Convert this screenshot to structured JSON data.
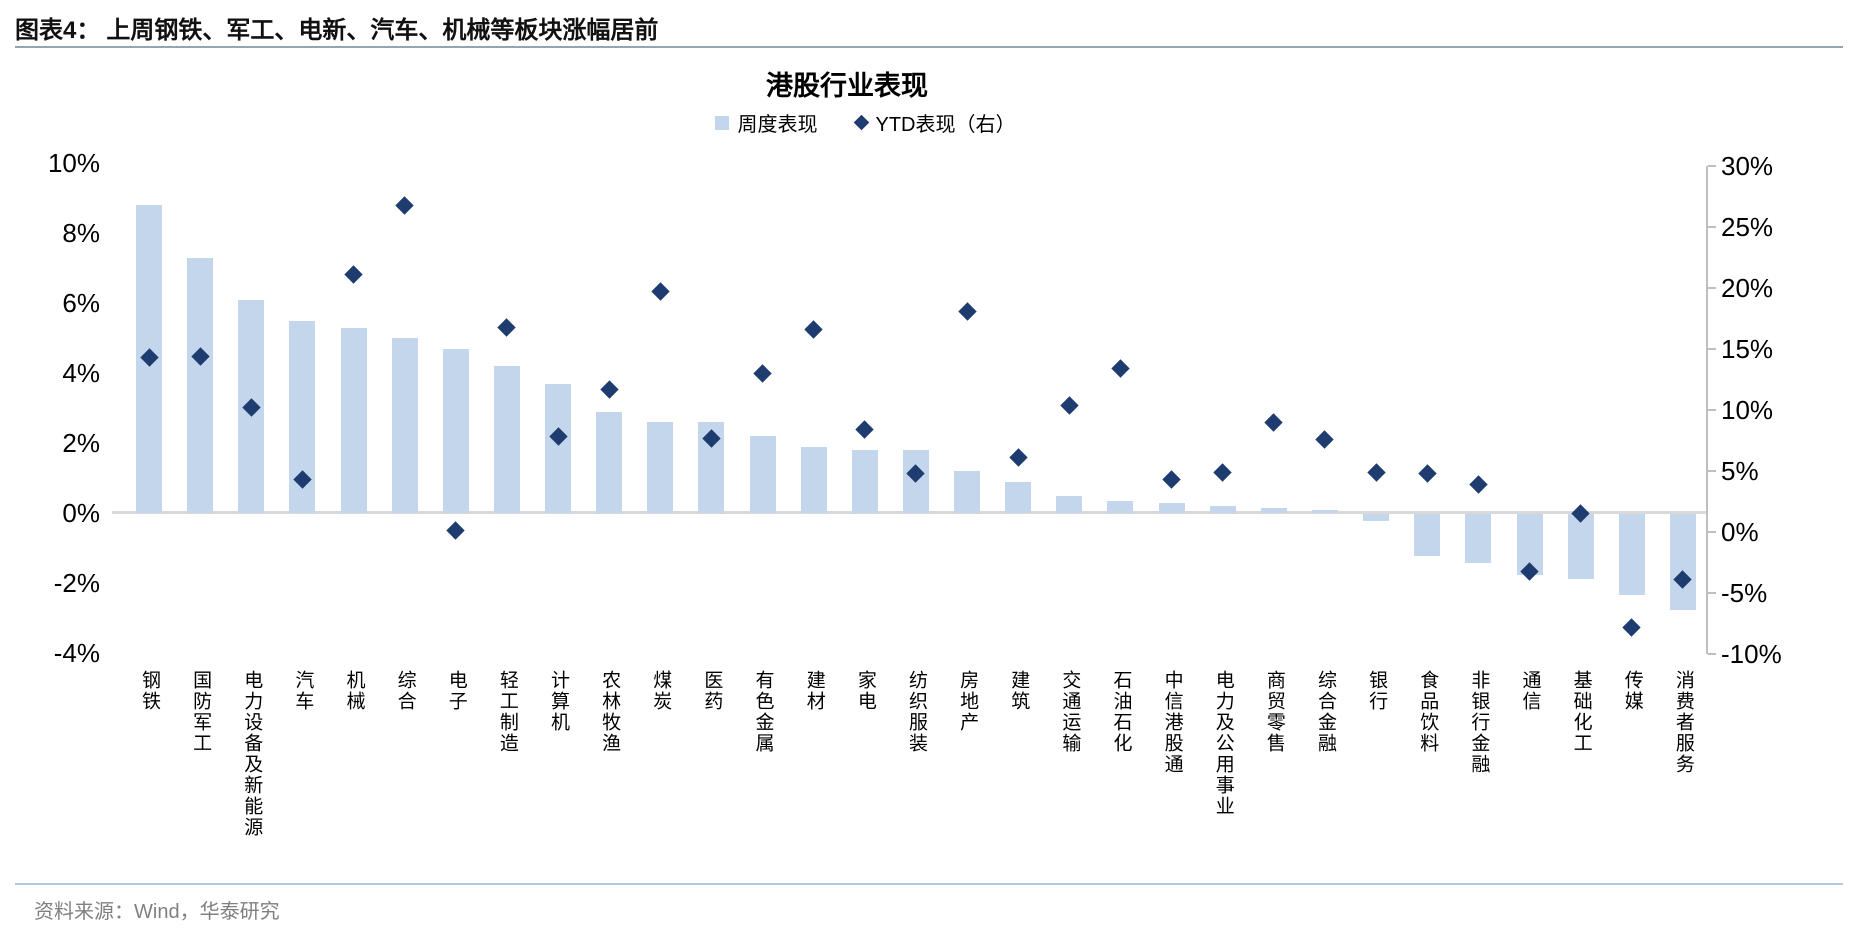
{
  "caption": {
    "prefix": "图表4：",
    "title": "上周钢铁、军工、电新、汽车、机械等板块涨幅居前"
  },
  "source_line": "资料来源：Wind，华泰研究",
  "chart_data": {
    "type": "bar",
    "subtype": "dual-axis bar + diamond scatter",
    "title": "港股行业表现",
    "legend": [
      {
        "label": "周度表现",
        "marker": "square",
        "color": "#c3d6eb"
      },
      {
        "label": "YTD表现（右）",
        "marker": "diamond",
        "color": "#1e3c6f"
      }
    ],
    "legend_position": "top-center",
    "grid": "0%-baseline only",
    "categories": [
      "钢铁",
      "国防军工",
      "电力设备及新能源",
      "汽车",
      "机械",
      "综合",
      "电子",
      "轻工制造",
      "计算机",
      "农林牧渔",
      "煤炭",
      "医药",
      "有色金属",
      "建材",
      "家电",
      "纺织服装",
      "房地产",
      "建筑",
      "交通运输",
      "石油石化",
      "中信港股通",
      "电力及公用事业",
      "商贸零售",
      "综合金融",
      "银行",
      "食品饮料",
      "非银行金融",
      "通信",
      "基础化工",
      "传媒",
      "消费者服务"
    ],
    "series": [
      {
        "name": "周度表现",
        "type": "bar",
        "axis": "left",
        "unit": "%",
        "values": [
          8.8,
          7.3,
          6.1,
          5.5,
          5.3,
          5.0,
          4.7,
          4.2,
          3.7,
          2.9,
          2.6,
          2.6,
          2.2,
          1.9,
          1.8,
          1.8,
          1.2,
          0.9,
          0.5,
          0.35,
          0.3,
          0.2,
          0.15,
          0.1,
          -0.2,
          -1.2,
          -1.4,
          -1.75,
          -1.85,
          -2.3,
          -2.75
        ]
      },
      {
        "name": "YTD表现（右）",
        "type": "scatter",
        "marker": "diamond",
        "axis": "right",
        "unit": "%",
        "values": [
          14.3,
          14.4,
          10.2,
          4.3,
          21.1,
          26.8,
          0.1,
          16.8,
          7.8,
          11.7,
          19.7,
          7.7,
          13.0,
          16.6,
          8.4,
          4.8,
          18.1,
          6.1,
          10.4,
          13.4,
          4.3,
          4.9,
          9.0,
          7.6,
          4.9,
          4.8,
          3.9,
          -3.2,
          1.5,
          -7.8,
          -3.9
        ]
      }
    ],
    "left_axis": {
      "min": -4,
      "max": 10,
      "ticks": [
        {
          "label": "10%",
          "value": 10
        },
        {
          "label": "8%",
          "value": 8
        },
        {
          "label": "6%",
          "value": 6
        },
        {
          "label": "4%",
          "value": 4
        },
        {
          "label": "2%",
          "value": 2
        },
        {
          "label": "0%",
          "value": 0
        },
        {
          "label": "-2%",
          "value": -2
        },
        {
          "label": "-4%",
          "value": -4
        }
      ]
    },
    "right_axis": {
      "min": -10,
      "max": 30,
      "ticks": [
        {
          "label": "30%",
          "value": 30
        },
        {
          "label": "25%",
          "value": 25
        },
        {
          "label": "20%",
          "value": 20
        },
        {
          "label": "15%",
          "value": 15
        },
        {
          "label": "10%",
          "value": 10
        },
        {
          "label": "5%",
          "value": 5
        },
        {
          "label": "0%",
          "value": 0
        },
        {
          "label": "-5%",
          "value": -5
        },
        {
          "label": "-10%",
          "value": -10
        }
      ]
    },
    "colors": {
      "bar": "#c3d6eb",
      "diamond": "#1e3c6f",
      "gridline": "#d9d9d9",
      "axis_line": "#bfbfbf",
      "caption_separator": "#93a5b5",
      "bottom_separator": "#b3c9de",
      "source_text": "#808080"
    }
  }
}
